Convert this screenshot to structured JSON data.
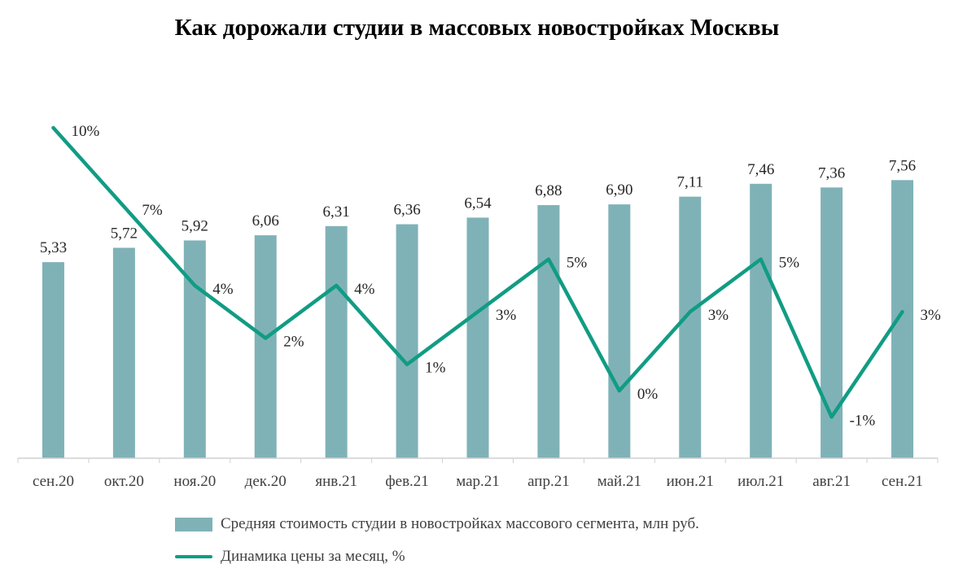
{
  "chart_data": {
    "type": "bar",
    "title": "Как дорожали студии в массовых новостройках  Москвы",
    "categories": [
      "сен.20",
      "окт.20",
      "ноя.20",
      "дек.20",
      "янв.21",
      "фев.21",
      "мар.21",
      "апр.21",
      "май.21",
      "июн.21",
      "июл.21",
      "авг.21",
      "сен.21"
    ],
    "series": [
      {
        "name": "Средняя стоимость студии в новостройках массового сегмента, млн руб.",
        "kind": "bar",
        "color": "#7fb2b7",
        "values": [
          5.33,
          5.72,
          5.92,
          6.06,
          6.31,
          6.36,
          6.54,
          6.88,
          6.9,
          7.11,
          7.46,
          7.36,
          7.56
        ],
        "labels": [
          "5,33",
          "5,72",
          "5,92",
          "6,06",
          "6,31",
          "6,36",
          "6,54",
          "6,88",
          "6,90",
          "7,11",
          "7,46",
          "7,36",
          "7,56"
        ]
      },
      {
        "name": "Динамика цены за месяц, %",
        "kind": "line",
        "color": "#119c84",
        "values": [
          10,
          7,
          4,
          2,
          4,
          1,
          3,
          5,
          0,
          3,
          5,
          -1,
          3
        ],
        "labels": [
          "10%",
          "7%",
          "4%",
          "2%",
          "4%",
          "1%",
          "3%",
          "5%",
          "0%",
          "3%",
          "5%",
          "-1%",
          "3%"
        ]
      }
    ],
    "legend_position": "bottom",
    "grid": false
  }
}
